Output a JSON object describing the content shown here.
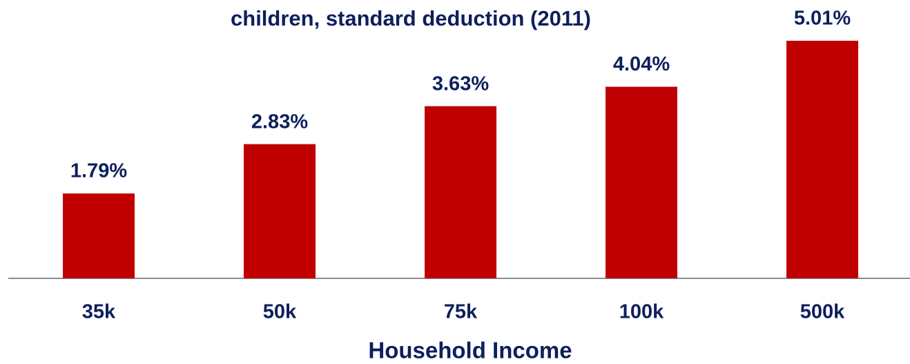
{
  "chart_data": {
    "type": "bar",
    "title": "children, standard deduction (2011)",
    "x_label": "Household Income",
    "categories": [
      "35k",
      "50k",
      "75k",
      "100k",
      "500k"
    ],
    "values": [
      1.79,
      2.83,
      3.63,
      4.04,
      5.01
    ],
    "value_labels": [
      "1.79%",
      "2.83%",
      "3.63%",
      "4.04%",
      "5.01%"
    ],
    "color": "#c00000",
    "ylim": [
      0,
      6
    ]
  }
}
